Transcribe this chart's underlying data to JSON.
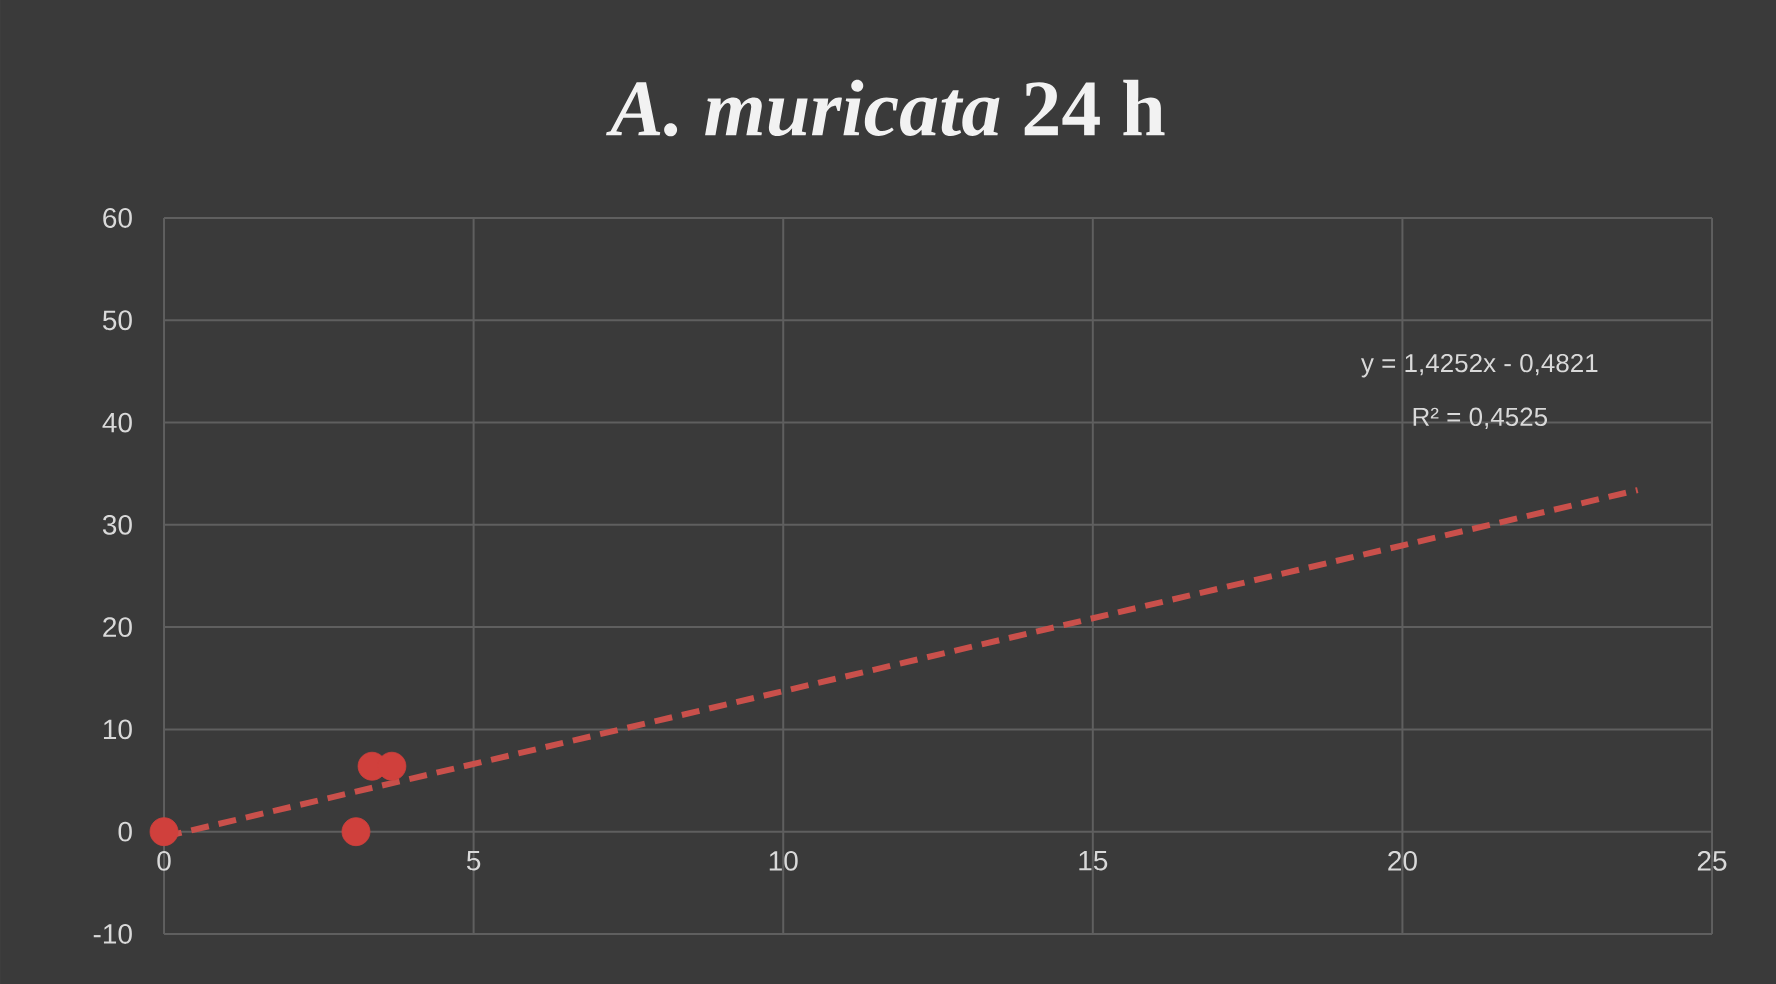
{
  "chart_data": {
    "type": "scatter",
    "title": "*A. muricata* **24 h**",
    "series": [
      {
        "color": "#d0403c",
        "marker": "circle",
        "x": [
          0,
          3.1,
          3.36,
          3.68
        ],
        "values": [
          0,
          0,
          6.4,
          6.4
        ]
      },
      {
        "type": "line",
        "color": "#c9504b",
        "line_style": "dashed",
        "marker": "none",
        "x": [
          0,
          23.8
        ],
        "values": [
          -0.5,
          33.4
        ]
      }
    ],
    "annotations": [
      "y = 1,4252x - 0,4821",
      "R² = 0,4525"
    ],
    "xlim": [
      0,
      25
    ],
    "ylim": [
      -10,
      60
    ],
    "xticks": [
      0,
      5,
      10,
      15,
      20,
      25
    ],
    "yticks": [
      -10,
      0,
      10,
      20,
      30,
      40,
      50,
      60
    ],
    "grid": true
  }
}
